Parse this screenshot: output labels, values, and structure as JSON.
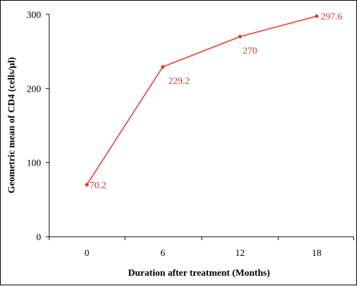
{
  "chart_data": {
    "type": "line",
    "title": "",
    "xlabel": "Duration after treatment (Months)",
    "ylabel": "Geometric mean of CD4 (cells/µl)",
    "x": [
      0,
      6,
      12,
      18
    ],
    "x_tick_labels": [
      "0",
      "6",
      "12",
      "18"
    ],
    "y_ticks": [
      0,
      100,
      200,
      300
    ],
    "y_tick_labels": [
      "0",
      "100",
      "200",
      "300"
    ],
    "ylim": [
      0,
      300
    ],
    "grid": false,
    "legend": "none",
    "series": [
      {
        "values": [
          70.2,
          229.2,
          270,
          297.6
        ],
        "labels": [
          "70.2",
          "229.2",
          "270",
          "297.6"
        ],
        "color": "#e8321e"
      }
    ]
  }
}
